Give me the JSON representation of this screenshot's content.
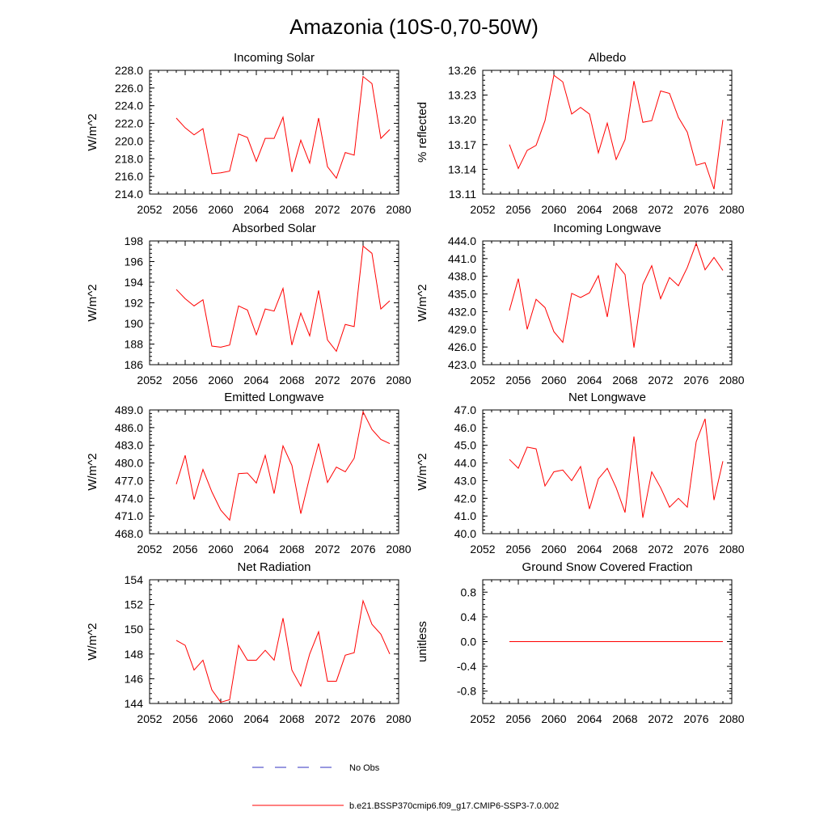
{
  "figure": {
    "title": "Amazonia (10S-0,70-50W)",
    "line_color": "#ff0000",
    "obs_color": "#3030c0"
  },
  "legend": {
    "obs_label": "No Obs",
    "model_label": "b.e21.BSSP370cmip6.f09_g17.CMIP6-SSP3-7.0.002"
  },
  "chart_data": [
    {
      "type": "line",
      "title": "Incoming Solar",
      "ylabel": "W/m^2",
      "xlabel": "",
      "xlim": [
        2052,
        2080
      ],
      "ylim": [
        214,
        228
      ],
      "xticks": [
        2052,
        2056,
        2060,
        2064,
        2068,
        2072,
        2076,
        2080
      ],
      "xtick_labels": [
        "2052",
        "2056",
        "2060",
        "2064",
        "2068",
        "2072",
        "2076",
        "2080"
      ],
      "yticks": [
        214,
        216,
        218,
        220,
        222,
        224,
        226,
        228
      ],
      "ytick_labels": [
        "214.0",
        "216.0",
        "218.0",
        "220.0",
        "222.0",
        "224.0",
        "226.0",
        "228.0"
      ],
      "x": [
        2055,
        2056,
        2057,
        2058,
        2059,
        2060,
        2061,
        2062,
        2063,
        2064,
        2065,
        2066,
        2067,
        2068,
        2069,
        2070,
        2071,
        2072,
        2073,
        2074,
        2075,
        2076,
        2077,
        2078,
        2079
      ],
      "series": [
        {
          "name": "b.e21.BSSP370cmip6.f09_g17.CMIP6-SSP3-7.0.002",
          "values": [
            222.6,
            221.5,
            220.7,
            221.4,
            216.3,
            216.4,
            216.6,
            220.8,
            220.4,
            217.7,
            220.3,
            220.3,
            222.7,
            216.5,
            220.1,
            217.5,
            222.6,
            217.1,
            215.8,
            218.7,
            218.4,
            227.3,
            226.5,
            220.3,
            221.3
          ]
        }
      ]
    },
    {
      "type": "line",
      "title": "Albedo",
      "ylabel": "% reflected",
      "xlabel": "",
      "xlim": [
        2052,
        2080
      ],
      "ylim": [
        13.11,
        13.26
      ],
      "xticks": [
        2052,
        2056,
        2060,
        2064,
        2068,
        2072,
        2076,
        2080
      ],
      "xtick_labels": [
        "2052",
        "2056",
        "2060",
        "2064",
        "2068",
        "2072",
        "2076",
        "2080"
      ],
      "yticks": [
        13.11,
        13.14,
        13.17,
        13.2,
        13.23,
        13.26
      ],
      "ytick_labels": [
        "13.11",
        "13.14",
        "13.17",
        "13.20",
        "13.23",
        "13.26"
      ],
      "x": [
        2055,
        2056,
        2057,
        2058,
        2059,
        2060,
        2061,
        2062,
        2063,
        2064,
        2065,
        2066,
        2067,
        2068,
        2069,
        2070,
        2071,
        2072,
        2073,
        2074,
        2075,
        2076,
        2077,
        2078,
        2079
      ],
      "series": [
        {
          "name": "b.e21.BSSP370cmip6.f09_g17.CMIP6-SSP3-7.0.002",
          "values": [
            13.17,
            13.141,
            13.163,
            13.169,
            13.199,
            13.254,
            13.246,
            13.207,
            13.215,
            13.207,
            13.16,
            13.196,
            13.152,
            13.176,
            13.247,
            13.197,
            13.199,
            13.235,
            13.232,
            13.203,
            13.185,
            13.145,
            13.148,
            13.116,
            13.2
          ]
        }
      ]
    },
    {
      "type": "line",
      "title": "Absorbed Solar",
      "ylabel": "W/m^2",
      "xlabel": "",
      "xlim": [
        2052,
        2080
      ],
      "ylim": [
        186,
        198
      ],
      "xticks": [
        2052,
        2056,
        2060,
        2064,
        2068,
        2072,
        2076,
        2080
      ],
      "xtick_labels": [
        "2052",
        "2056",
        "2060",
        "2064",
        "2068",
        "2072",
        "2076",
        "2080"
      ],
      "yticks": [
        186,
        188,
        190,
        192,
        194,
        196,
        198
      ],
      "ytick_labels": [
        "186",
        "188",
        "190",
        "192",
        "194",
        "196",
        "198"
      ],
      "x": [
        2055,
        2056,
        2057,
        2058,
        2059,
        2060,
        2061,
        2062,
        2063,
        2064,
        2065,
        2066,
        2067,
        2068,
        2069,
        2070,
        2071,
        2072,
        2073,
        2074,
        2075,
        2076,
        2077,
        2078,
        2079
      ],
      "series": [
        {
          "name": "b.e21.BSSP370cmip6.f09_g17.CMIP6-SSP3-7.0.002",
          "values": [
            193.3,
            192.4,
            191.7,
            192.3,
            187.8,
            187.7,
            187.9,
            191.7,
            191.3,
            188.9,
            191.4,
            191.2,
            193.4,
            187.9,
            191.0,
            188.8,
            193.2,
            188.4,
            187.3,
            189.9,
            189.7,
            197.5,
            196.8,
            191.4,
            192.2
          ]
        }
      ]
    },
    {
      "type": "line",
      "title": "Incoming Longwave",
      "ylabel": "W/m^2",
      "xlabel": "",
      "xlim": [
        2052,
        2080
      ],
      "ylim": [
        423,
        444
      ],
      "xticks": [
        2052,
        2056,
        2060,
        2064,
        2068,
        2072,
        2076,
        2080
      ],
      "xtick_labels": [
        "2052",
        "2056",
        "2060",
        "2064",
        "2068",
        "2072",
        "2076",
        "2080"
      ],
      "yticks": [
        423,
        426,
        429,
        432,
        435,
        438,
        441,
        444
      ],
      "ytick_labels": [
        "423.0",
        "426.0",
        "429.0",
        "432.0",
        "435.0",
        "438.0",
        "441.0",
        "444.0"
      ],
      "x": [
        2055,
        2056,
        2057,
        2058,
        2059,
        2060,
        2061,
        2062,
        2063,
        2064,
        2065,
        2066,
        2067,
        2068,
        2069,
        2070,
        2071,
        2072,
        2073,
        2074,
        2075,
        2076,
        2077,
        2078,
        2079
      ],
      "series": [
        {
          "name": "b.e21.BSSP370cmip6.f09_g17.CMIP6-SSP3-7.0.002",
          "values": [
            432.2,
            437.6,
            429.0,
            434.1,
            432.7,
            428.6,
            426.8,
            435.1,
            434.4,
            435.2,
            438.1,
            431.1,
            440.2,
            438.3,
            425.9,
            436.6,
            439.8,
            434.2,
            437.8,
            436.4,
            439.5,
            443.6,
            439.1,
            441.2,
            439.0
          ]
        }
      ]
    },
    {
      "type": "line",
      "title": "Emitted Longwave",
      "ylabel": "W/m^2",
      "xlabel": "",
      "xlim": [
        2052,
        2080
      ],
      "ylim": [
        468,
        489
      ],
      "xticks": [
        2052,
        2056,
        2060,
        2064,
        2068,
        2072,
        2076,
        2080
      ],
      "xtick_labels": [
        "2052",
        "2056",
        "2060",
        "2064",
        "2068",
        "2072",
        "2076",
        "2080"
      ],
      "yticks": [
        468,
        471,
        474,
        477,
        480,
        483,
        486,
        489
      ],
      "ytick_labels": [
        "468.0",
        "471.0",
        "474.0",
        "477.0",
        "480.0",
        "483.0",
        "486.0",
        "489.0"
      ],
      "x": [
        2055,
        2056,
        2057,
        2058,
        2059,
        2060,
        2061,
        2062,
        2063,
        2064,
        2065,
        2066,
        2067,
        2068,
        2069,
        2070,
        2071,
        2072,
        2073,
        2074,
        2075,
        2076,
        2077,
        2078,
        2079
      ],
      "series": [
        {
          "name": "b.e21.BSSP370cmip6.f09_g17.CMIP6-SSP3-7.0.002",
          "values": [
            476.4,
            481.3,
            473.8,
            478.9,
            475.1,
            472.0,
            470.3,
            478.2,
            478.3,
            476.6,
            481.3,
            474.8,
            482.9,
            479.6,
            471.4,
            477.6,
            483.3,
            476.7,
            479.3,
            478.5,
            480.8,
            488.7,
            485.7,
            484.0,
            483.3
          ]
        }
      ]
    },
    {
      "type": "line",
      "title": "Net Longwave",
      "ylabel": "W/m^2",
      "xlabel": "",
      "xlim": [
        2052,
        2080
      ],
      "ylim": [
        40,
        47
      ],
      "xticks": [
        2052,
        2056,
        2060,
        2064,
        2068,
        2072,
        2076,
        2080
      ],
      "xtick_labels": [
        "2052",
        "2056",
        "2060",
        "2064",
        "2068",
        "2072",
        "2076",
        "2080"
      ],
      "yticks": [
        40,
        41,
        42,
        43,
        44,
        45,
        46,
        47
      ],
      "ytick_labels": [
        "40.0",
        "41.0",
        "42.0",
        "43.0",
        "44.0",
        "45.0",
        "46.0",
        "47.0"
      ],
      "x": [
        2055,
        2056,
        2057,
        2058,
        2059,
        2060,
        2061,
        2062,
        2063,
        2064,
        2065,
        2066,
        2067,
        2068,
        2069,
        2070,
        2071,
        2072,
        2073,
        2074,
        2075,
        2076,
        2077,
        2078,
        2079
      ],
      "series": [
        {
          "name": "b.e21.BSSP370cmip6.f09_g17.CMIP6-SSP3-7.0.002",
          "values": [
            44.2,
            43.7,
            44.9,
            44.8,
            42.7,
            43.5,
            43.6,
            43.0,
            43.8,
            41.4,
            43.1,
            43.7,
            42.6,
            41.2,
            45.5,
            40.9,
            43.5,
            42.6,
            41.5,
            42.0,
            41.5,
            45.2,
            46.5,
            41.9,
            44.1
          ]
        }
      ]
    },
    {
      "type": "line",
      "title": "Net Radiation",
      "ylabel": "W/m^2",
      "xlabel": "",
      "xlim": [
        2052,
        2080
      ],
      "ylim": [
        144,
        154
      ],
      "xticks": [
        2052,
        2056,
        2060,
        2064,
        2068,
        2072,
        2076,
        2080
      ],
      "xtick_labels": [
        "2052",
        "2056",
        "2060",
        "2064",
        "2068",
        "2072",
        "2076",
        "2080"
      ],
      "yticks": [
        144,
        146,
        148,
        150,
        152,
        154
      ],
      "ytick_labels": [
        "144",
        "146",
        "148",
        "150",
        "152",
        "154"
      ],
      "x": [
        2055,
        2056,
        2057,
        2058,
        2059,
        2060,
        2061,
        2062,
        2063,
        2064,
        2065,
        2066,
        2067,
        2068,
        2069,
        2070,
        2071,
        2072,
        2073,
        2074,
        2075,
        2076,
        2077,
        2078,
        2079
      ],
      "series": [
        {
          "name": "b.e21.BSSP370cmip6.f09_g17.CMIP6-SSP3-7.0.002",
          "values": [
            149.1,
            148.7,
            146.7,
            147.5,
            145.1,
            144.1,
            144.3,
            148.7,
            147.5,
            147.5,
            148.3,
            147.5,
            150.9,
            146.7,
            145.4,
            148.0,
            149.8,
            145.8,
            145.8,
            147.9,
            148.1,
            152.3,
            150.4,
            149.6,
            148.0
          ]
        }
      ]
    },
    {
      "type": "line",
      "title": "Ground Snow Covered Fraction",
      "ylabel": "unitless",
      "xlabel": "",
      "xlim": [
        2052,
        2080
      ],
      "ylim": [
        -1.0,
        1.0
      ],
      "xticks": [
        2052,
        2056,
        2060,
        2064,
        2068,
        2072,
        2076,
        2080
      ],
      "xtick_labels": [
        "2052",
        "2056",
        "2060",
        "2064",
        "2068",
        "2072",
        "2076",
        "2080"
      ],
      "yticks": [
        -0.8,
        -0.4,
        0.0,
        0.4,
        0.8
      ],
      "ytick_labels": [
        "-0.8",
        "-0.4",
        "0.0",
        "0.4",
        "0.8"
      ],
      "x": [
        2055,
        2056,
        2057,
        2058,
        2059,
        2060,
        2061,
        2062,
        2063,
        2064,
        2065,
        2066,
        2067,
        2068,
        2069,
        2070,
        2071,
        2072,
        2073,
        2074,
        2075,
        2076,
        2077,
        2078,
        2079
      ],
      "series": [
        {
          "name": "b.e21.BSSP370cmip6.f09_g17.CMIP6-SSP3-7.0.002",
          "values": [
            0,
            0,
            0,
            0,
            0,
            0,
            0,
            0,
            0,
            0,
            0,
            0,
            0,
            0,
            0,
            0,
            0,
            0,
            0,
            0,
            0,
            0,
            0,
            0,
            0
          ]
        }
      ]
    }
  ]
}
